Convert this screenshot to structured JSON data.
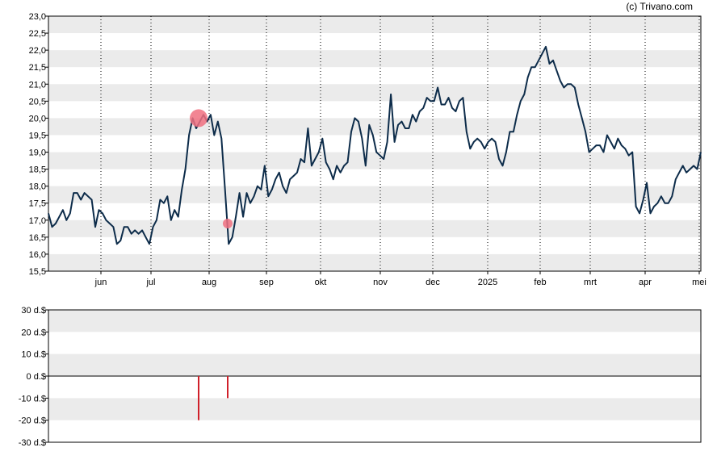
{
  "copyright": "(c) Trivano.com",
  "chart_data": [
    {
      "type": "line",
      "title": "",
      "xlabel": "",
      "ylabel": "",
      "ylim": [
        15.5,
        23.0
      ],
      "grid": "alternating horizontal bands, dotted vertical month lines",
      "line_color": "#0d2c4a",
      "y_ticks": [
        "15,5",
        "16,0",
        "16,5",
        "17,0",
        "17,5",
        "18,0",
        "18,5",
        "19,0",
        "19,5",
        "20,0",
        "20,5",
        "21,0",
        "21,5",
        "22,0",
        "22,5",
        "23,0"
      ],
      "x_ticks": [
        "jun",
        "jul",
        "aug",
        "sep",
        "okt",
        "nov",
        "dec",
        "2025",
        "feb",
        "mrt",
        "apr",
        "mei"
      ],
      "series": [
        {
          "values": [
            17.2,
            16.8,
            16.9,
            17.1,
            17.3,
            17.0,
            17.2,
            17.8,
            17.8,
            17.6,
            17.8,
            17.7,
            17.6,
            16.8,
            17.3,
            17.2,
            17.0,
            16.9,
            16.8,
            16.3,
            16.4,
            16.8,
            16.8,
            16.6,
            16.7,
            16.6,
            16.7,
            16.5,
            16.3,
            16.8,
            17.0,
            17.6,
            17.5,
            17.7,
            17.0,
            17.3,
            17.1,
            17.9,
            18.5,
            19.5,
            20.0,
            19.7,
            19.9,
            20.1,
            19.9,
            20.1,
            19.5,
            19.9,
            19.4,
            17.9,
            16.3,
            16.5,
            17.1,
            17.8,
            17.1,
            17.8,
            17.5,
            17.7,
            18.0,
            17.9,
            18.6,
            17.7,
            17.9,
            18.2,
            18.4,
            18.0,
            17.8,
            18.2,
            18.3,
            18.4,
            18.8,
            18.7,
            19.7,
            18.6,
            18.8,
            19.0,
            19.4,
            18.7,
            18.5,
            18.2,
            18.6,
            18.4,
            18.6,
            18.7,
            19.6,
            20.0,
            19.9,
            19.4,
            18.6,
            19.8,
            19.5,
            19.0,
            18.9,
            18.8,
            19.3,
            20.7,
            19.3,
            19.8,
            19.9,
            19.7,
            19.7,
            20.1,
            19.9,
            20.2,
            20.3,
            20.6,
            20.5,
            20.5,
            20.9,
            20.4,
            20.4,
            20.6,
            20.3,
            20.2,
            20.5,
            20.6,
            19.6,
            19.1,
            19.3,
            19.4,
            19.3,
            19.1,
            19.3,
            19.4,
            19.3,
            18.8,
            18.6,
            19.0,
            19.6,
            19.6,
            20.1,
            20.5,
            20.7,
            21.2,
            21.5,
            21.5,
            21.7,
            21.9,
            22.1,
            21.6,
            21.7,
            21.4,
            21.1,
            20.9,
            21.0,
            21.0,
            20.9,
            20.4,
            20.0,
            19.6,
            19.0,
            19.1,
            19.2,
            19.2,
            19.0,
            19.5,
            19.3,
            19.1,
            19.4,
            19.2,
            19.1,
            18.9,
            19.0,
            17.4,
            17.2,
            17.6,
            18.1,
            17.2,
            17.4,
            17.5,
            17.7,
            17.5,
            17.5,
            17.7,
            18.2,
            18.4,
            18.6,
            18.4,
            18.5,
            18.6,
            18.5,
            19.0
          ]
        }
      ],
      "markers": [
        {
          "type": "large-buy",
          "date_position": "late jul",
          "value": 20.0,
          "color": "#f07080"
        },
        {
          "type": "small-buy",
          "date_position": "early aug",
          "value": 16.9,
          "color": "#f07080"
        }
      ]
    },
    {
      "type": "bar",
      "title": "",
      "ylim": [
        -30,
        30
      ],
      "y_ticks": [
        "30 d.$",
        "20 d.$",
        "10 d.$",
        "0 d.$",
        "-10 d.$",
        "-20 d.$",
        "-30 d.$"
      ],
      "bar_color": "#d0202a",
      "bars": [
        {
          "date_position": "late jul",
          "value": -20
        },
        {
          "date_position": "early aug",
          "value": -10
        }
      ]
    }
  ]
}
